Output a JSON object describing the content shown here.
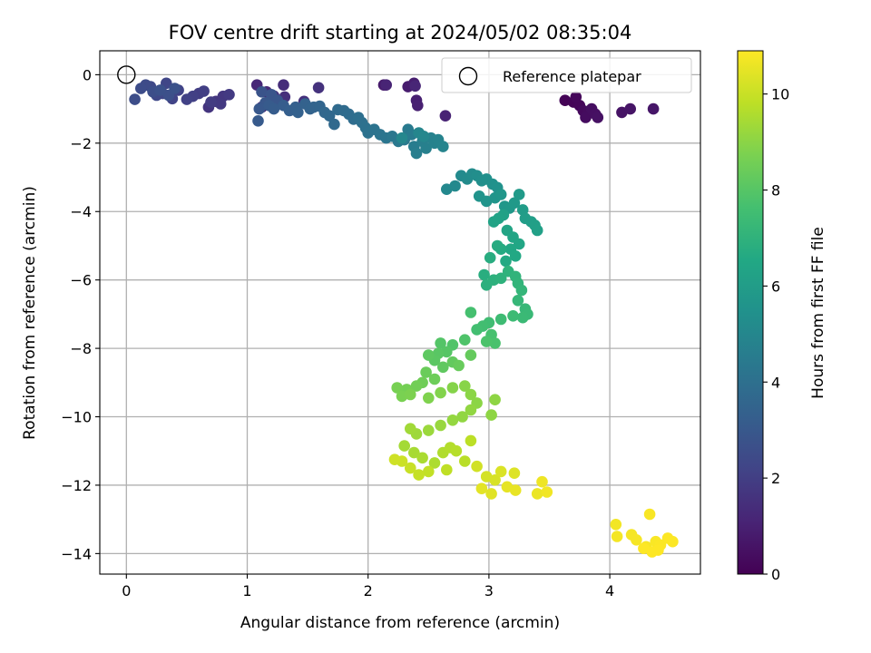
{
  "chart_data": {
    "type": "scatter",
    "title": "FOV centre drift starting at 2024/05/02 08:35:04",
    "xlabel": "Angular distance from reference (arcmin)",
    "ylabel": "Rotation from reference (arcmin)",
    "xlim": [
      -0.22,
      4.75
    ],
    "ylim": [
      -14.6,
      0.7
    ],
    "x_ticks": [
      0,
      1,
      2,
      3,
      4
    ],
    "y_ticks": [
      0,
      -2,
      -4,
      -6,
      -8,
      -10,
      -12,
      -14
    ],
    "grid": true,
    "colormap": "viridis",
    "colorbar": {
      "label": "Hours from first FF file",
      "range": [
        0,
        10.9
      ],
      "ticks": [
        0,
        2,
        4,
        6,
        8,
        10
      ]
    },
    "legend": {
      "position": "top-right",
      "entries": [
        "Reference platepar"
      ]
    },
    "reference": {
      "x": 0,
      "y": 0,
      "label": "Reference platepar"
    },
    "series": [
      {
        "points": [
          [
            3.63,
            -0.75,
            0.05
          ],
          [
            3.7,
            -0.8,
            0.1
          ],
          [
            3.75,
            -0.9,
            0.15
          ],
          [
            3.72,
            -0.65,
            0.2
          ],
          [
            3.78,
            -1.05,
            0.25
          ],
          [
            3.82,
            -1.1,
            0.3
          ],
          [
            3.8,
            -1.25,
            0.35
          ],
          [
            3.85,
            -1.0,
            0.4
          ],
          [
            3.88,
            -1.15,
            0.45
          ],
          [
            3.9,
            -1.25,
            0.5
          ],
          [
            4.1,
            -1.1,
            0.55
          ],
          [
            4.17,
            -1.0,
            0.6
          ],
          [
            4.36,
            -1.0,
            0.65
          ],
          [
            2.13,
            -0.3,
            0.8
          ],
          [
            2.33,
            -0.35,
            0.85
          ],
          [
            2.38,
            -0.25,
            0.9
          ],
          [
            2.4,
            -0.75,
            0.95
          ],
          [
            2.41,
            -0.9,
            1.0
          ],
          [
            2.64,
            -1.2,
            1.05
          ],
          [
            2.15,
            -0.3,
            1.1
          ],
          [
            2.39,
            -0.33,
            1.15
          ],
          [
            1.08,
            -0.3,
            1.2
          ],
          [
            1.16,
            -0.5,
            1.25
          ],
          [
            1.2,
            -0.7,
            1.3
          ],
          [
            1.12,
            -0.95,
            1.35
          ],
          [
            1.3,
            -0.3,
            1.4
          ],
          [
            1.31,
            -0.65,
            1.45
          ],
          [
            1.47,
            -0.78,
            1.5
          ],
          [
            1.59,
            -0.38,
            1.55
          ],
          [
            1.22,
            -0.62,
            1.6
          ],
          [
            0.68,
            -0.95,
            1.65
          ],
          [
            0.74,
            -0.78,
            1.7
          ],
          [
            0.8,
            -0.63,
            1.75
          ],
          [
            0.78,
            -0.85,
            1.8
          ],
          [
            0.85,
            -0.58,
            1.85
          ],
          [
            0.7,
            -0.8,
            1.9
          ],
          [
            0.6,
            -0.55,
            1.95
          ],
          [
            0.64,
            -0.48,
            2.0
          ],
          [
            0.55,
            -0.63,
            2.05
          ],
          [
            0.5,
            -0.72,
            2.1
          ],
          [
            0.43,
            -0.45,
            2.15
          ],
          [
            0.38,
            -0.7,
            2.2
          ],
          [
            0.33,
            -0.25,
            2.25
          ],
          [
            0.3,
            -0.55,
            2.3
          ],
          [
            0.25,
            -0.6,
            2.35
          ],
          [
            0.2,
            -0.35,
            2.4
          ],
          [
            0.16,
            -0.3,
            2.45
          ],
          [
            0.12,
            -0.4,
            2.5
          ],
          [
            0.07,
            -0.72,
            2.55
          ],
          [
            0.22,
            -0.5,
            2.6
          ],
          [
            0.35,
            -0.6,
            2.65
          ],
          [
            0.28,
            -0.45,
            2.7
          ],
          [
            0.4,
            -0.4,
            2.75
          ],
          [
            1.12,
            -0.5,
            2.8
          ],
          [
            1.2,
            -0.58,
            2.85
          ],
          [
            1.25,
            -0.75,
            2.9
          ],
          [
            1.15,
            -0.82,
            2.95
          ],
          [
            1.1,
            -1.0,
            3.0
          ],
          [
            1.09,
            -1.35,
            3.05
          ],
          [
            1.18,
            -0.9,
            3.1
          ],
          [
            1.22,
            -1.0,
            3.15
          ],
          [
            1.3,
            -0.9,
            3.2
          ],
          [
            1.35,
            -1.05,
            3.25
          ],
          [
            1.4,
            -0.95,
            3.3
          ],
          [
            1.42,
            -1.1,
            3.35
          ],
          [
            1.48,
            -0.85,
            3.4
          ],
          [
            1.52,
            -1.0,
            3.45
          ],
          [
            1.55,
            -0.95,
            3.5
          ],
          [
            1.6,
            -0.92,
            3.55
          ],
          [
            1.64,
            -1.1,
            3.6
          ],
          [
            1.68,
            -1.2,
            3.65
          ],
          [
            1.72,
            -1.45,
            3.7
          ],
          [
            1.75,
            -1.02,
            3.75
          ],
          [
            1.8,
            -1.05,
            3.8
          ],
          [
            1.84,
            -1.15,
            3.85
          ],
          [
            1.88,
            -1.3,
            3.9
          ],
          [
            1.92,
            -1.25,
            3.95
          ],
          [
            1.95,
            -1.4,
            4.0
          ],
          [
            1.98,
            -1.55,
            4.05
          ],
          [
            2.0,
            -1.7,
            4.1
          ],
          [
            2.05,
            -1.6,
            4.15
          ],
          [
            2.1,
            -1.75,
            4.2
          ],
          [
            2.15,
            -1.85,
            4.25
          ],
          [
            2.2,
            -1.8,
            4.3
          ],
          [
            2.25,
            -1.95,
            4.35
          ],
          [
            2.3,
            -1.9,
            4.4
          ],
          [
            2.33,
            -1.6,
            4.45
          ],
          [
            2.36,
            -1.75,
            4.5
          ],
          [
            2.38,
            -2.1,
            4.55
          ],
          [
            2.4,
            -2.3,
            4.6
          ],
          [
            2.45,
            -1.95,
            4.65
          ],
          [
            2.48,
            -2.15,
            4.7
          ],
          [
            2.52,
            -1.85,
            4.75
          ],
          [
            2.55,
            -2.0,
            4.8
          ],
          [
            2.58,
            -1.9,
            4.85
          ],
          [
            2.62,
            -2.1,
            4.9
          ],
          [
            2.42,
            -1.7,
            4.95
          ],
          [
            2.28,
            -1.85,
            5.0
          ],
          [
            2.46,
            -1.8,
            5.02
          ],
          [
            2.65,
            -3.35,
            5.05
          ],
          [
            2.72,
            -3.25,
            5.1
          ],
          [
            2.77,
            -2.95,
            5.15
          ],
          [
            2.82,
            -3.05,
            5.2
          ],
          [
            2.86,
            -2.9,
            5.25
          ],
          [
            2.9,
            -2.95,
            5.3
          ],
          [
            2.94,
            -3.1,
            5.35
          ],
          [
            2.98,
            -3.05,
            5.4
          ],
          [
            3.03,
            -3.2,
            5.45
          ],
          [
            3.07,
            -3.3,
            5.5
          ],
          [
            2.92,
            -3.55,
            5.55
          ],
          [
            2.98,
            -3.7,
            5.6
          ],
          [
            3.05,
            -3.6,
            5.65
          ],
          [
            3.1,
            -3.5,
            5.7
          ],
          [
            3.13,
            -3.85,
            5.75
          ],
          [
            3.17,
            -3.9,
            5.8
          ],
          [
            3.21,
            -3.75,
            5.85
          ],
          [
            3.25,
            -3.5,
            5.9
          ],
          [
            3.28,
            -3.95,
            5.95
          ],
          [
            3.3,
            -4.2,
            6.0
          ],
          [
            3.35,
            -4.3,
            6.05
          ],
          [
            3.38,
            -4.4,
            6.1
          ],
          [
            3.4,
            -4.55,
            6.15
          ],
          [
            3.12,
            -4.1,
            6.2
          ],
          [
            3.08,
            -4.2,
            6.25
          ],
          [
            3.04,
            -4.3,
            6.3
          ],
          [
            3.15,
            -4.55,
            6.35
          ],
          [
            3.2,
            -4.75,
            6.4
          ],
          [
            3.25,
            -4.95,
            6.45
          ],
          [
            3.18,
            -5.1,
            6.5
          ],
          [
            3.22,
            -5.3,
            6.55
          ],
          [
            3.14,
            -5.45,
            6.6
          ],
          [
            3.1,
            -5.1,
            6.65
          ],
          [
            3.07,
            -5.0,
            6.7
          ],
          [
            3.01,
            -5.35,
            6.75
          ],
          [
            2.96,
            -5.85,
            6.8
          ],
          [
            2.98,
            -6.15,
            6.85
          ],
          [
            3.04,
            -6.0,
            6.9
          ],
          [
            3.1,
            -5.95,
            6.95
          ],
          [
            3.16,
            -5.75,
            7.0
          ],
          [
            3.22,
            -5.9,
            7.05
          ],
          [
            3.24,
            -6.1,
            7.1
          ],
          [
            3.27,
            -6.3,
            7.15
          ],
          [
            3.24,
            -6.6,
            7.2
          ],
          [
            3.3,
            -6.85,
            7.25
          ],
          [
            3.32,
            -7.0,
            7.3
          ],
          [
            3.28,
            -7.1,
            7.35
          ],
          [
            3.2,
            -7.05,
            7.4
          ],
          [
            3.1,
            -7.15,
            7.45
          ],
          [
            3.0,
            -7.25,
            7.5
          ],
          [
            2.95,
            -7.35,
            7.55
          ],
          [
            2.9,
            -7.45,
            7.6
          ],
          [
            2.85,
            -6.95,
            7.65
          ],
          [
            3.02,
            -7.6,
            7.7
          ],
          [
            3.05,
            -7.85,
            7.75
          ],
          [
            2.98,
            -7.8,
            7.8
          ],
          [
            2.8,
            -7.75,
            7.85
          ],
          [
            2.7,
            -7.9,
            7.9
          ],
          [
            2.6,
            -7.85,
            7.95
          ],
          [
            2.65,
            -8.1,
            8.0
          ],
          [
            2.58,
            -8.15,
            8.05
          ],
          [
            2.55,
            -8.35,
            8.1
          ],
          [
            2.5,
            -8.2,
            8.15
          ],
          [
            2.62,
            -8.55,
            8.2
          ],
          [
            2.7,
            -8.4,
            8.25
          ],
          [
            2.85,
            -8.2,
            8.3
          ],
          [
            2.75,
            -8.5,
            8.35
          ],
          [
            2.48,
            -8.7,
            8.4
          ],
          [
            2.55,
            -8.9,
            8.45
          ],
          [
            2.45,
            -9.0,
            8.5
          ],
          [
            2.4,
            -9.1,
            8.55
          ],
          [
            2.32,
            -9.2,
            8.6
          ],
          [
            2.24,
            -9.15,
            8.65
          ],
          [
            2.28,
            -9.4,
            8.7
          ],
          [
            2.35,
            -9.35,
            8.75
          ],
          [
            2.5,
            -9.45,
            8.8
          ],
          [
            2.6,
            -9.3,
            8.85
          ],
          [
            2.7,
            -9.15,
            8.9
          ],
          [
            2.8,
            -9.1,
            8.95
          ],
          [
            2.85,
            -9.35,
            9.0
          ],
          [
            2.9,
            -9.6,
            9.0
          ],
          [
            3.05,
            -9.5,
            9.05
          ],
          [
            3.02,
            -9.95,
            9.05
          ],
          [
            2.85,
            -9.8,
            9.1
          ],
          [
            2.78,
            -10.0,
            9.1
          ],
          [
            2.7,
            -10.1,
            9.15
          ],
          [
            2.6,
            -10.25,
            9.2
          ],
          [
            2.5,
            -10.4,
            9.25
          ],
          [
            2.4,
            -10.5,
            9.3
          ],
          [
            2.35,
            -10.35,
            9.35
          ],
          [
            2.3,
            -10.85,
            9.4
          ],
          [
            2.38,
            -11.05,
            9.45
          ],
          [
            2.45,
            -11.2,
            9.5
          ],
          [
            2.55,
            -11.35,
            9.55
          ],
          [
            2.62,
            -11.05,
            9.6
          ],
          [
            2.68,
            -10.9,
            9.65
          ],
          [
            2.73,
            -11.0,
            9.7
          ],
          [
            2.8,
            -11.3,
            9.75
          ],
          [
            2.85,
            -10.7,
            9.8
          ],
          [
            2.65,
            -11.55,
            9.85
          ],
          [
            2.5,
            -11.6,
            9.9
          ],
          [
            2.42,
            -11.7,
            9.95
          ],
          [
            2.35,
            -11.5,
            10.0
          ],
          [
            2.28,
            -11.3,
            10.05
          ],
          [
            2.22,
            -11.25,
            10.1
          ],
          [
            2.9,
            -11.45,
            10.15
          ],
          [
            2.98,
            -11.75,
            10.2
          ],
          [
            3.05,
            -11.85,
            10.25
          ],
          [
            3.1,
            -11.6,
            10.3
          ],
          [
            3.21,
            -11.65,
            10.35
          ],
          [
            3.02,
            -12.25,
            10.4
          ],
          [
            2.94,
            -12.1,
            10.45
          ],
          [
            3.15,
            -12.05,
            10.5
          ],
          [
            3.22,
            -12.15,
            10.55
          ],
          [
            3.4,
            -12.25,
            10.6
          ],
          [
            3.44,
            -11.9,
            10.65
          ],
          [
            3.48,
            -12.2,
            10.7
          ],
          [
            4.05,
            -13.15,
            10.72
          ],
          [
            4.06,
            -13.5,
            10.74
          ],
          [
            4.18,
            -13.45,
            10.76
          ],
          [
            4.22,
            -13.6,
            10.78
          ],
          [
            4.3,
            -13.8,
            10.8
          ],
          [
            4.33,
            -12.85,
            10.82
          ],
          [
            4.38,
            -13.65,
            10.84
          ],
          [
            4.42,
            -13.75,
            10.86
          ],
          [
            4.48,
            -13.55,
            10.88
          ],
          [
            4.52,
            -13.65,
            10.89
          ],
          [
            4.4,
            -13.9,
            10.9
          ],
          [
            4.35,
            -13.95,
            10.9
          ],
          [
            4.28,
            -13.85,
            10.9
          ]
        ]
      }
    ]
  }
}
